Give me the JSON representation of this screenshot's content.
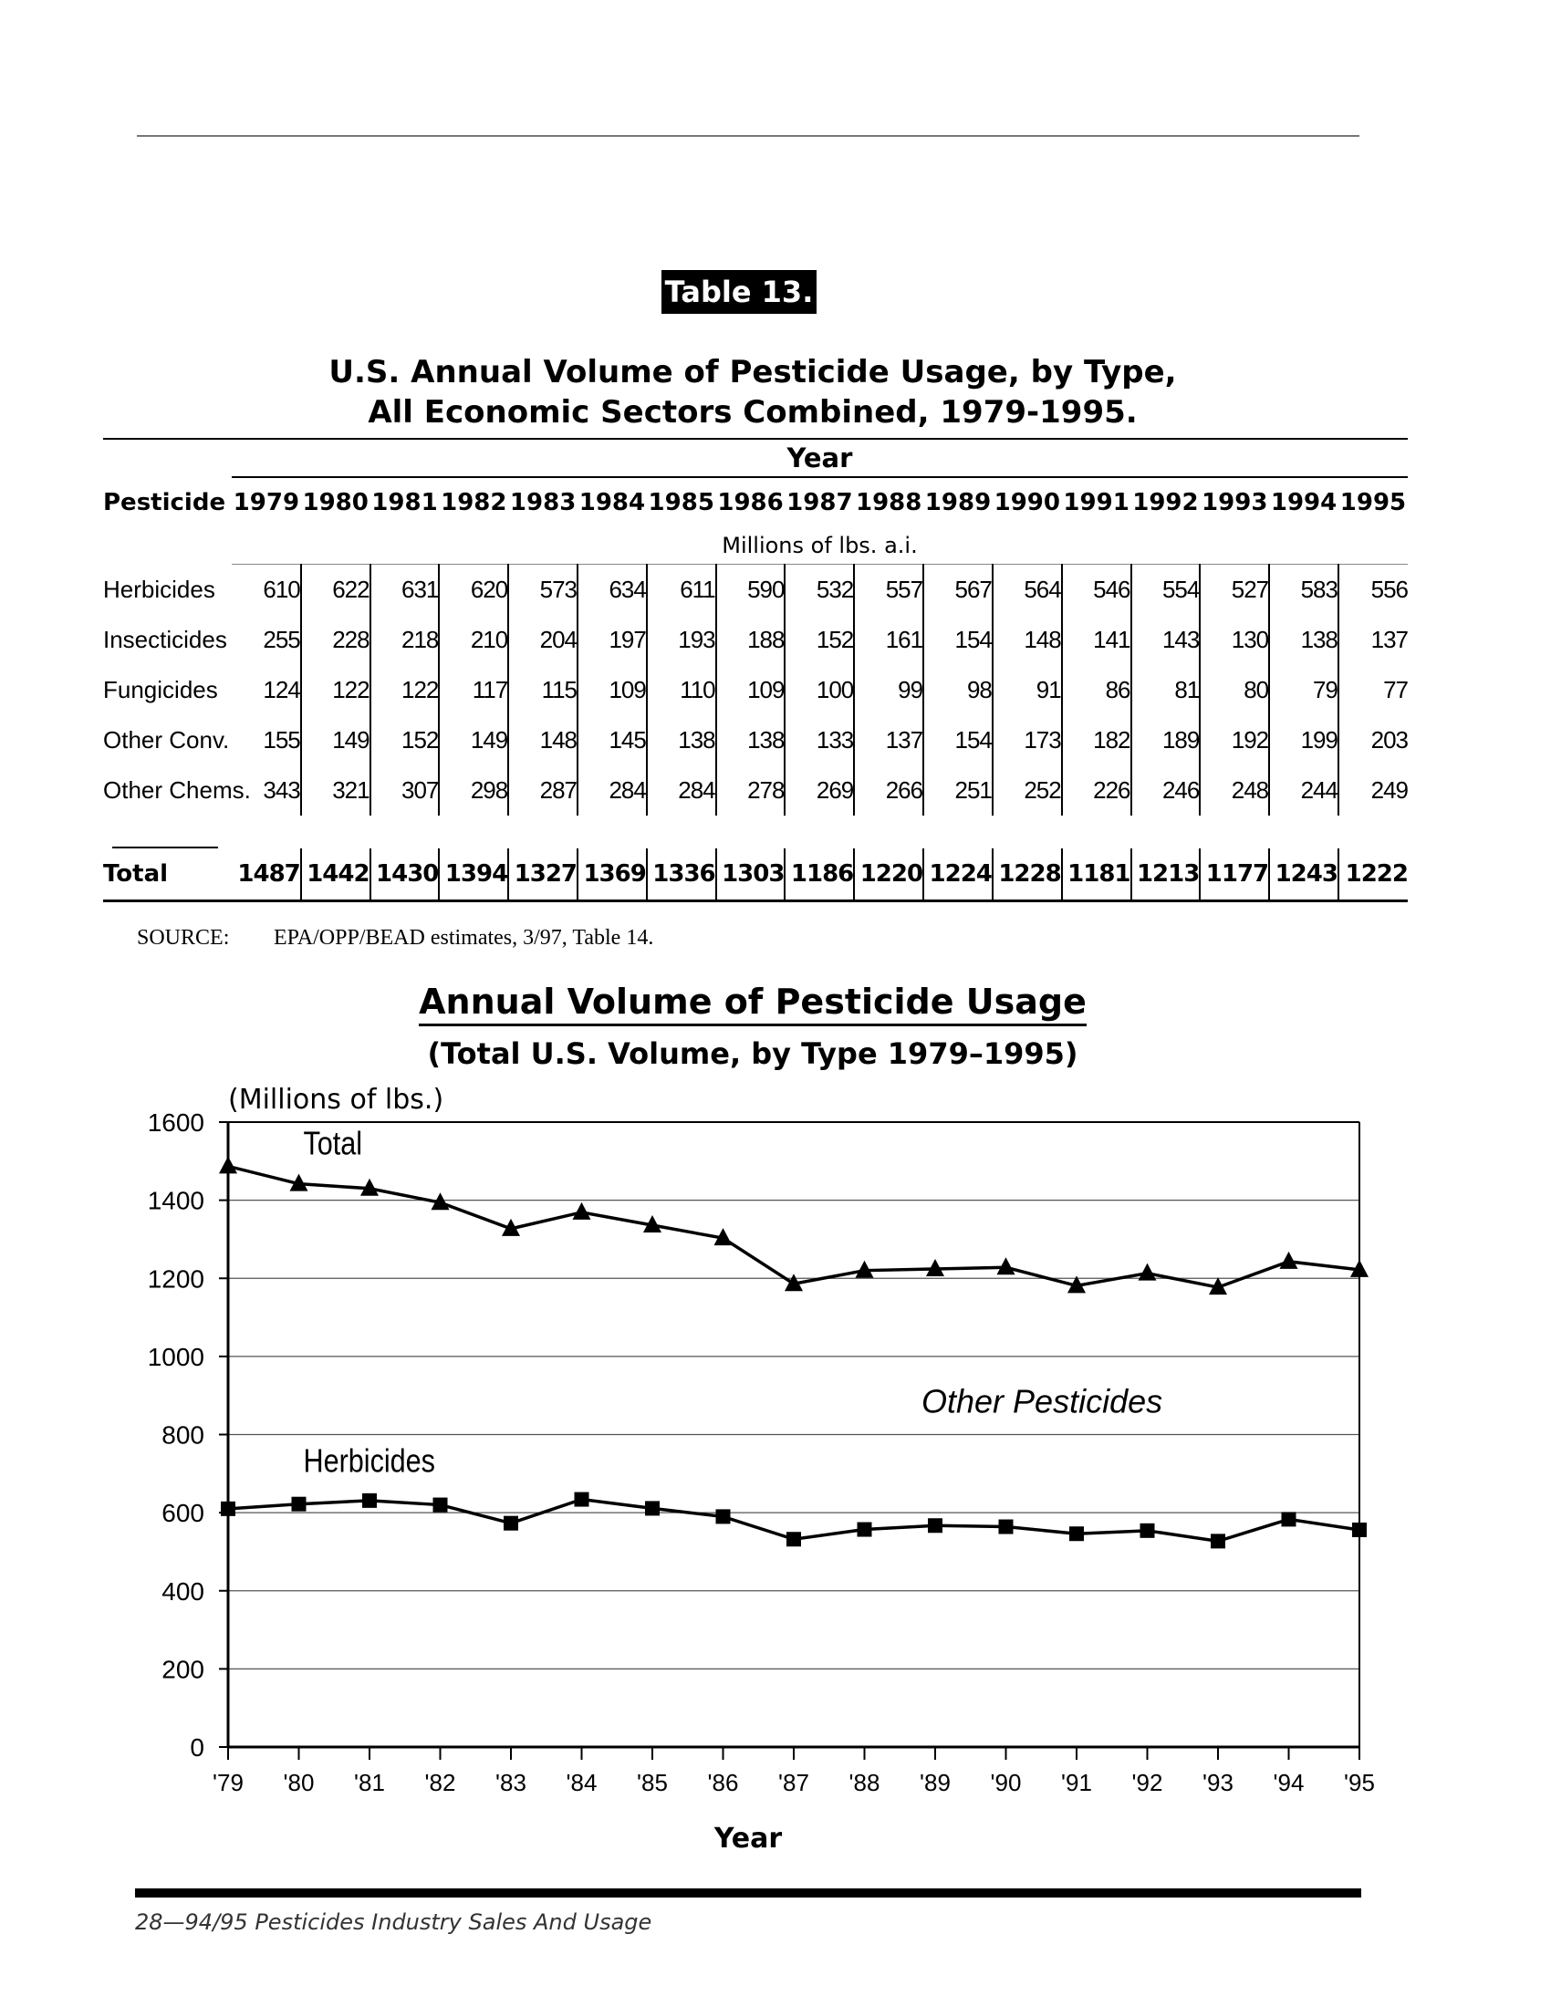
{
  "table_label": "Table 13.",
  "table_title_line1": "U.S. Annual Volume of Pesticide Usage, by Type,",
  "table_title_line2": "All Economic Sectors Combined, 1979-1995.",
  "year_heading": "Year",
  "pesticide_heading": "Pesticide",
  "units_label": "Millions of lbs. a.i.",
  "years": [
    "1979",
    "1980",
    "1981",
    "1982",
    "1983",
    "1984",
    "1985",
    "1986",
    "1987",
    "1988",
    "1989",
    "1990",
    "1991",
    "1992",
    "1993",
    "1994",
    "1995"
  ],
  "rows": [
    {
      "name": "Herbicides",
      "values": [
        "610",
        "622",
        "631",
        "620",
        "573",
        "634",
        "611",
        "590",
        "532",
        "557",
        "567",
        "564",
        "546",
        "554",
        "527",
        "583",
        "556"
      ]
    },
    {
      "name": "Insecticides",
      "values": [
        "255",
        "228",
        "218",
        "210",
        "204",
        "197",
        "193",
        "188",
        "152",
        "161",
        "154",
        "148",
        "141",
        "143",
        "130",
        "138",
        "137"
      ]
    },
    {
      "name": "Fungicides",
      "values": [
        "124",
        "122",
        "122",
        "117",
        "115",
        "109",
        "110",
        "109",
        "100",
        "99",
        "98",
        "91",
        "86",
        "81",
        "80",
        "79",
        "77"
      ]
    },
    {
      "name": "Other Conv.",
      "values": [
        "155",
        "149",
        "152",
        "149",
        "148",
        "145",
        "138",
        "138",
        "133",
        "137",
        "154",
        "173",
        "182",
        "189",
        "192",
        "199",
        "203"
      ]
    },
    {
      "name": "Other Chems.",
      "values": [
        "343",
        "321",
        "307",
        "298",
        "287",
        "284",
        "284",
        "278",
        "269",
        "266",
        "251",
        "252",
        "226",
        "246",
        "248",
        "244",
        "249"
      ]
    }
  ],
  "total_row": {
    "name": "Total",
    "values": [
      "1487",
      "1442",
      "1430",
      "1394",
      "1327",
      "1369",
      "1336",
      "1303",
      "1186",
      "1220",
      "1224",
      "1228",
      "1181",
      "1213",
      "1177",
      "1243",
      "1222"
    ]
  },
  "source_label": "SOURCE:",
  "source_text": "EPA/OPP/BEAD estimates, 3/97, Table 14.",
  "chart_data": {
    "type": "line",
    "title": "Annual Volume of Pesticide Usage",
    "subtitle": "(Total U.S. Volume, by Type 1979–1995)",
    "ylabel": "(Millions of lbs.)",
    "xlabel": "Year",
    "x": [
      "'79",
      "'80",
      "'81",
      "'82",
      "'83",
      "'84",
      "'85",
      "'86",
      "'87",
      "'88",
      "'89",
      "'90",
      "'91",
      "'92",
      "'93",
      "'94",
      "'95"
    ],
    "ylim": [
      0,
      1600
    ],
    "yticks": [
      "0",
      "200",
      "400",
      "600",
      "800",
      "1000",
      "1200",
      "1400",
      "1600"
    ],
    "grid": true,
    "series": [
      {
        "name": "Total",
        "marker": "triangle",
        "values": [
          1487,
          1442,
          1430,
          1394,
          1327,
          1369,
          1336,
          1303,
          1186,
          1220,
          1224,
          1228,
          1181,
          1213,
          1177,
          1243,
          1222
        ]
      },
      {
        "name": "Herbicides",
        "marker": "square",
        "values": [
          610,
          622,
          631,
          620,
          573,
          634,
          611,
          590,
          532,
          557,
          567,
          564,
          546,
          554,
          527,
          583,
          556
        ]
      }
    ],
    "annotation": "Other Pesticides"
  },
  "footer": "28—94/95 Pesticides Industry Sales And Usage"
}
